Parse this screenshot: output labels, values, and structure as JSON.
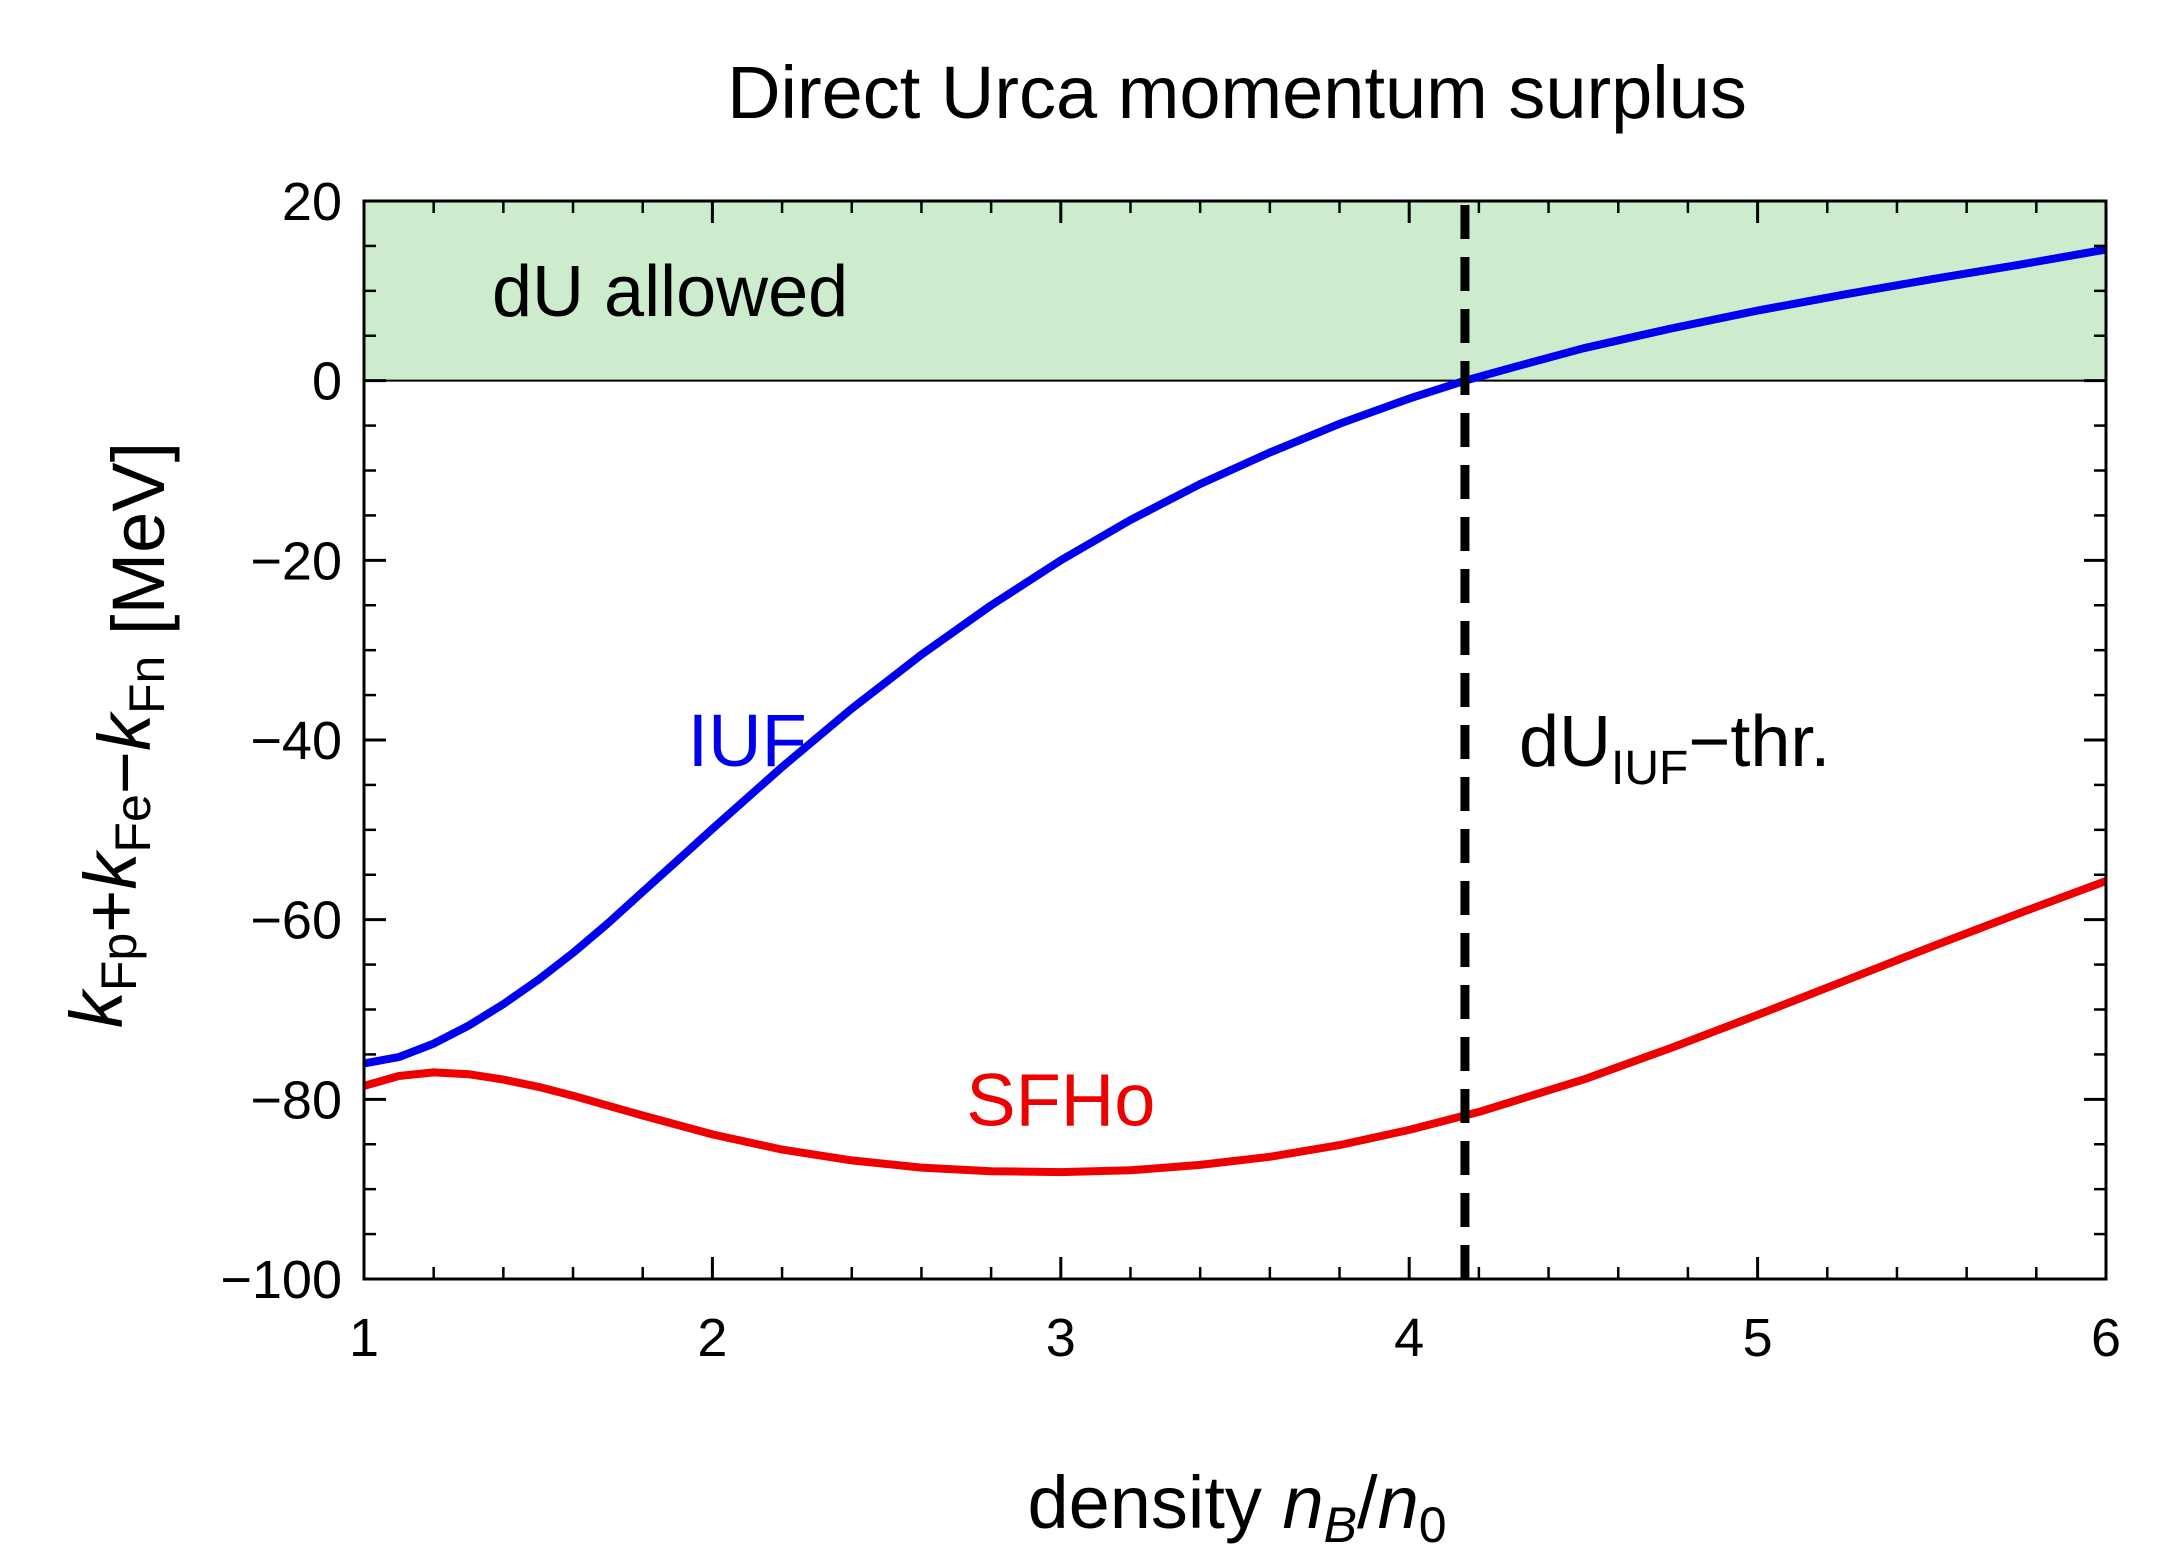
{
  "chart_data": {
    "type": "line",
    "title": "Direct Urca momentum surplus",
    "xlabel": {
      "prefix": "density ",
      "var1": "n",
      "sub1": "B",
      "slash": "/",
      "var2": "n",
      "sub2": "0"
    },
    "ylabel": {
      "parts": [
        {
          "k": "k",
          "sub": "Fp"
        },
        {
          "op": "+"
        },
        {
          "k": "k",
          "sub": "Fe"
        },
        {
          "op": "−"
        },
        {
          "k": "k",
          "sub": "Fn"
        }
      ],
      "unit": " [MeV]"
    },
    "xlim": [
      1,
      6
    ],
    "ylim": [
      -100,
      20
    ],
    "xticks": [
      1,
      2,
      3,
      4,
      5,
      6
    ],
    "xtick_labels": [
      "1",
      "2",
      "3",
      "4",
      "5",
      "6"
    ],
    "yticks": [
      -100,
      -80,
      -60,
      -40,
      -20,
      0,
      20
    ],
    "ytick_labels": [
      "−100",
      "−80",
      "−60",
      "−40",
      "−20",
      "0",
      "20"
    ],
    "grid": false,
    "shaded_region": {
      "label": "dU allowed",
      "y_from": 0,
      "y_to": 20,
      "color": "#cdeccd"
    },
    "threshold_line": {
      "x": 4.16,
      "label": {
        "main": "dU",
        "sub": "IUF",
        "tail": "−thr."
      },
      "color": "#000000"
    },
    "series": [
      {
        "name": "IUF",
        "color": "#0000ee",
        "label_at": {
          "x": 2.1,
          "y": -40
        },
        "points": [
          [
            1.0,
            -76.0
          ],
          [
            1.1,
            -75.3
          ],
          [
            1.2,
            -73.8
          ],
          [
            1.3,
            -71.8
          ],
          [
            1.4,
            -69.4
          ],
          [
            1.5,
            -66.7
          ],
          [
            1.6,
            -63.7
          ],
          [
            1.7,
            -60.4
          ],
          [
            1.8,
            -56.9
          ],
          [
            1.9,
            -53.4
          ],
          [
            2.0,
            -49.9
          ],
          [
            2.2,
            -43.0
          ],
          [
            2.4,
            -36.5
          ],
          [
            2.6,
            -30.5
          ],
          [
            2.8,
            -25.0
          ],
          [
            3.0,
            -20.0
          ],
          [
            3.2,
            -15.5
          ],
          [
            3.4,
            -11.5
          ],
          [
            3.6,
            -8.0
          ],
          [
            3.8,
            -4.8
          ],
          [
            4.0,
            -2.0
          ],
          [
            4.16,
            0.0
          ],
          [
            4.3,
            1.5
          ],
          [
            4.5,
            3.6
          ],
          [
            4.75,
            5.8
          ],
          [
            5.0,
            7.8
          ],
          [
            5.25,
            9.6
          ],
          [
            5.5,
            11.3
          ],
          [
            5.75,
            12.9
          ],
          [
            6.0,
            14.6
          ]
        ]
      },
      {
        "name": "SFHo",
        "color": "#ee0000",
        "label_at": {
          "x": 3.0,
          "y": -80
        },
        "points": [
          [
            1.0,
            -78.5
          ],
          [
            1.1,
            -77.4
          ],
          [
            1.2,
            -77.0
          ],
          [
            1.3,
            -77.2
          ],
          [
            1.4,
            -77.8
          ],
          [
            1.5,
            -78.6
          ],
          [
            1.6,
            -79.6
          ],
          [
            1.8,
            -81.8
          ],
          [
            2.0,
            -83.9
          ],
          [
            2.2,
            -85.6
          ],
          [
            2.4,
            -86.8
          ],
          [
            2.6,
            -87.6
          ],
          [
            2.8,
            -88.0
          ],
          [
            3.0,
            -88.1
          ],
          [
            3.2,
            -87.9
          ],
          [
            3.4,
            -87.3
          ],
          [
            3.6,
            -86.4
          ],
          [
            3.8,
            -85.1
          ],
          [
            4.0,
            -83.4
          ],
          [
            4.2,
            -81.4
          ],
          [
            4.5,
            -77.8
          ],
          [
            4.75,
            -74.3
          ],
          [
            5.0,
            -70.6
          ],
          [
            5.25,
            -66.8
          ],
          [
            5.5,
            -63.0
          ],
          [
            5.75,
            -59.3
          ],
          [
            6.0,
            -55.7
          ]
        ]
      }
    ]
  }
}
